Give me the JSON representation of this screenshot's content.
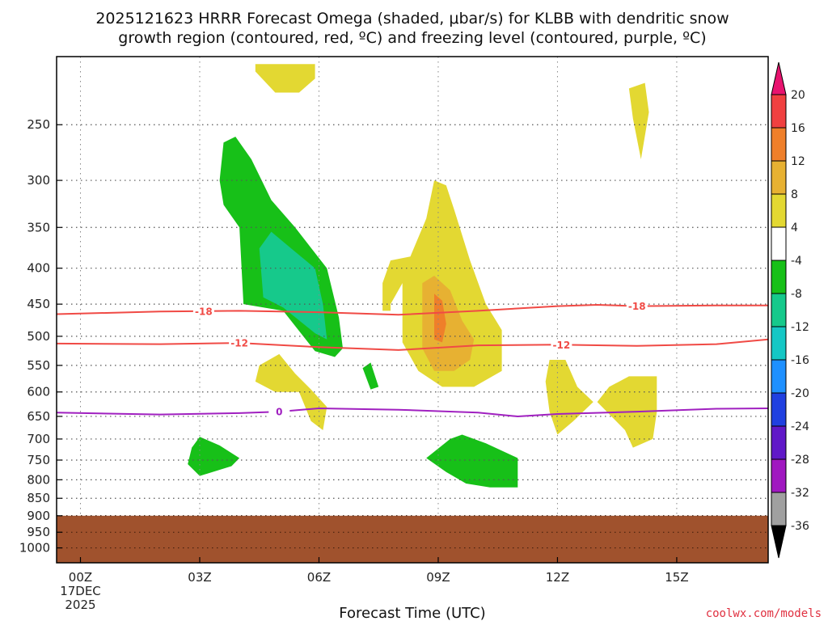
{
  "header": {
    "title_line1": "2025121623 HRRR Forecast Omega (shaded, μbar/s) for KLBB with dendritic snow",
    "title_line2": "growth region (contoured, red, ºC) and freezing level (contoured, purple, ºC)"
  },
  "footer": {
    "xlabel": "Forecast Time (UTC)",
    "credit": "coolwx.com/models"
  },
  "chart_data": {
    "type": "contour",
    "x_ticks": [
      {
        "hour": 0,
        "label": "00Z",
        "sub1": "17DEC",
        "sub2": "2025"
      },
      {
        "hour": 3,
        "label": "03Z"
      },
      {
        "hour": 6,
        "label": "06Z"
      },
      {
        "hour": 9,
        "label": "09Z"
      },
      {
        "hour": 12,
        "label": "12Z"
      },
      {
        "hour": 15,
        "label": "15Z"
      }
    ],
    "xlim_hours": [
      -0.6,
      17.3
    ],
    "y_ticks": [
      250,
      300,
      350,
      400,
      450,
      500,
      550,
      600,
      650,
      700,
      750,
      800,
      850,
      900,
      950,
      1000
    ],
    "y_scale": "log-pressure",
    "ylim_hPa": [
      200,
      1050
    ],
    "grid": true,
    "terrain": {
      "surface_pressure_hPa": 900,
      "color": "#a0522d"
    },
    "colorbar": {
      "labels": [
        "20",
        "16",
        "12",
        "8",
        "4",
        "-4",
        "-8",
        "-12",
        "-16",
        "-20",
        "-24",
        "-28",
        "-32",
        "-36"
      ],
      "colors": [
        "#e8136f",
        "#f04040",
        "#ef7f2a",
        "#e7b132",
        "#e3d832",
        "#ffffff",
        "#17c018",
        "#16c98b",
        "#15c7c5",
        "#1e90ff",
        "#2040e0",
        "#6018c8",
        "#a018c0",
        "#a0a0a0",
        "#000000"
      ]
    },
    "shaded_regions": [
      {
        "omega_min": 4,
        "color": "#e3d832",
        "points": [
          [
            4.4,
            205
          ],
          [
            5.9,
            205
          ],
          [
            5.9,
            215
          ],
          [
            5.5,
            225
          ],
          [
            4.9,
            225
          ],
          [
            4.4,
            210
          ]
        ]
      },
      {
        "omega_min": 4,
        "color": "#e3d832",
        "points": [
          [
            13.8,
            222
          ],
          [
            14.2,
            218
          ],
          [
            14.3,
            240
          ],
          [
            14.1,
            280
          ],
          [
            13.9,
            245
          ]
        ]
      },
      {
        "omega_min": 4,
        "color": "#e3d832",
        "points": [
          [
            7.8,
            390
          ],
          [
            8.3,
            385
          ],
          [
            8.7,
            340
          ],
          [
            8.9,
            300
          ],
          [
            9.2,
            305
          ],
          [
            9.4,
            330
          ],
          [
            9.8,
            390
          ],
          [
            10.2,
            450
          ],
          [
            10.6,
            490
          ],
          [
            10.6,
            560
          ],
          [
            9.9,
            590
          ],
          [
            9.1,
            590
          ],
          [
            8.5,
            560
          ],
          [
            8.1,
            510
          ],
          [
            8.1,
            420
          ],
          [
            7.8,
            450
          ],
          [
            7.8,
            460
          ],
          [
            7.6,
            460
          ],
          [
            7.6,
            420
          ]
        ]
      },
      {
        "omega_min": 4,
        "color": "#e3d832",
        "points": [
          [
            4.5,
            550
          ],
          [
            5.0,
            530
          ],
          [
            5.4,
            565
          ],
          [
            5.8,
            595
          ],
          [
            6.2,
            630
          ],
          [
            6.1,
            680
          ],
          [
            5.8,
            660
          ],
          [
            5.5,
            600
          ],
          [
            4.9,
            600
          ],
          [
            4.4,
            580
          ]
        ]
      },
      {
        "omega_min": 4,
        "color": "#e3d832",
        "points": [
          [
            11.8,
            540
          ],
          [
            12.2,
            540
          ],
          [
            12.5,
            590
          ],
          [
            12.9,
            620
          ],
          [
            12.4,
            660
          ],
          [
            12.0,
            690
          ],
          [
            11.8,
            640
          ],
          [
            11.7,
            580
          ]
        ]
      },
      {
        "omega_min": 4,
        "color": "#e3d832",
        "points": [
          [
            13.3,
            590
          ],
          [
            13.8,
            570
          ],
          [
            14.5,
            570
          ],
          [
            14.5,
            640
          ],
          [
            14.4,
            700
          ],
          [
            13.9,
            720
          ],
          [
            13.7,
            680
          ],
          [
            13.0,
            620
          ]
        ]
      },
      {
        "omega_min": 8,
        "color": "#e7b132",
        "points": [
          [
            8.6,
            420
          ],
          [
            8.9,
            410
          ],
          [
            9.3,
            430
          ],
          [
            9.6,
            475
          ],
          [
            9.9,
            505
          ],
          [
            9.8,
            540
          ],
          [
            9.4,
            560
          ],
          [
            8.9,
            560
          ],
          [
            8.6,
            520
          ],
          [
            8.6,
            470
          ]
        ]
      },
      {
        "omega_min": 12,
        "color": "#ef7f2a",
        "points": [
          [
            8.9,
            435
          ],
          [
            9.1,
            445
          ],
          [
            9.2,
            480
          ],
          [
            9.1,
            510
          ],
          [
            8.9,
            505
          ],
          [
            8.9,
            470
          ]
        ]
      },
      {
        "omega_min": -4,
        "color": "#17c018",
        "points": [
          [
            3.6,
            265
          ],
          [
            3.9,
            260
          ],
          [
            4.3,
            280
          ],
          [
            4.8,
            320
          ],
          [
            5.4,
            350
          ],
          [
            6.2,
            400
          ],
          [
            6.5,
            470
          ],
          [
            6.6,
            520
          ],
          [
            6.4,
            535
          ],
          [
            5.9,
            525
          ],
          [
            5.1,
            460
          ],
          [
            4.1,
            450
          ],
          [
            4.0,
            350
          ],
          [
            3.6,
            325
          ],
          [
            3.5,
            300
          ]
        ]
      },
      {
        "omega_min": -4,
        "color": "#17c018",
        "points": [
          [
            7.1,
            555
          ],
          [
            7.3,
            545
          ],
          [
            7.5,
            590
          ],
          [
            7.3,
            595
          ]
        ]
      },
      {
        "omega_min": -4,
        "color": "#17c018",
        "points": [
          [
            2.8,
            720
          ],
          [
            3.0,
            695
          ],
          [
            3.5,
            715
          ],
          [
            4.0,
            745
          ],
          [
            3.8,
            765
          ],
          [
            3.0,
            790
          ],
          [
            2.7,
            760
          ]
        ]
      },
      {
        "omega_min": -4,
        "color": "#17c018",
        "points": [
          [
            8.7,
            745
          ],
          [
            9.3,
            700
          ],
          [
            9.6,
            690
          ],
          [
            10.2,
            710
          ],
          [
            11.0,
            745
          ],
          [
            11.0,
            820
          ],
          [
            10.3,
            820
          ],
          [
            9.7,
            810
          ],
          [
            9.2,
            780
          ]
        ]
      },
      {
        "omega_min": -8,
        "color": "#16c98b",
        "points": [
          [
            4.5,
            375
          ],
          [
            4.8,
            355
          ],
          [
            5.3,
            375
          ],
          [
            5.9,
            400
          ],
          [
            6.1,
            450
          ],
          [
            6.2,
            505
          ],
          [
            5.9,
            495
          ],
          [
            5.1,
            455
          ],
          [
            4.6,
            440
          ]
        ]
      }
    ],
    "contours": [
      {
        "name": "-18",
        "kind": "dendritic",
        "color": "#f04a45",
        "x": [
          -0.6,
          2,
          4,
          6,
          8,
          10,
          12,
          13,
          14,
          16,
          17.3
        ],
        "y": [
          465,
          461,
          460,
          462,
          466,
          460,
          453,
          451,
          453,
          452,
          452
        ],
        "label_x": [
          3.1,
          14.0
        ]
      },
      {
        "name": "-12",
        "kind": "dendritic",
        "color": "#f04a45",
        "x": [
          -0.6,
          2,
          4,
          6,
          8,
          10,
          12,
          14,
          16,
          17.3
        ],
        "y": [
          512,
          513,
          511,
          518,
          523,
          515,
          514,
          516,
          513,
          505
        ],
        "label_x": [
          4.0,
          12.1
        ]
      },
      {
        "name": "0",
        "kind": "freezing",
        "color": "#a020c0",
        "x": [
          -0.6,
          2,
          4,
          5,
          6,
          8,
          10,
          11,
          12,
          14,
          16,
          17.3
        ],
        "y": [
          642,
          646,
          643,
          640,
          633,
          636,
          642,
          650,
          645,
          640,
          634,
          633
        ],
        "label_x": [
          5.0
        ]
      }
    ]
  }
}
